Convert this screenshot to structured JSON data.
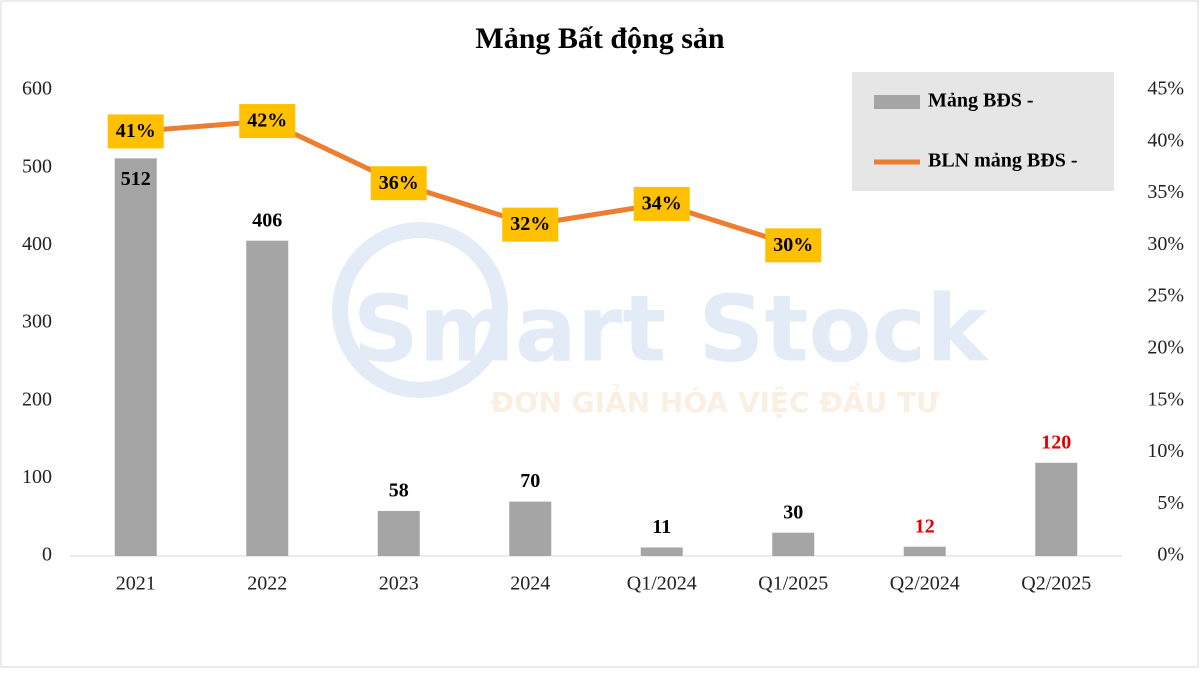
{
  "chart_data": {
    "type": "bar_line",
    "title": "Mảng Bất động sản",
    "categories": [
      "2021",
      "2022",
      "2023",
      "2024",
      "Q1/2024",
      "Q1/2025",
      "Q2/2024",
      "Q2/2025"
    ],
    "series": [
      {
        "name": "Mảng BĐS -",
        "type": "bar",
        "color": "#a5a5a5",
        "values": [
          512,
          406,
          58,
          70,
          11,
          30,
          12,
          120
        ],
        "label_colors": [
          "#000000",
          "#000000",
          "#000000",
          "#000000",
          "#000000",
          "#000000",
          "#e00000",
          "#e00000"
        ]
      },
      {
        "name": "BLN mảng BĐS -",
        "type": "line",
        "axis": "y2",
        "color": "#ed7d31",
        "values": [
          41,
          42,
          36,
          32,
          34,
          30,
          null,
          null
        ],
        "value_labels": [
          "41%",
          "42%",
          "36%",
          "32%",
          "34%",
          "30%",
          null,
          null
        ],
        "label_background": "#ffc000"
      }
    ],
    "ylim": [
      0,
      600
    ],
    "yticks": [
      0,
      100,
      200,
      300,
      400,
      500,
      600
    ],
    "y2lim": [
      0,
      45
    ],
    "y2ticks": [
      {
        "value": 0,
        "label": "0%"
      },
      {
        "value": 5,
        "label": "5%"
      },
      {
        "value": 10,
        "label": "10%"
      },
      {
        "value": 15,
        "label": "15%"
      },
      {
        "value": 20,
        "label": "20%"
      },
      {
        "value": 25,
        "label": "25%"
      },
      {
        "value": 30,
        "label": "30%"
      },
      {
        "value": 35,
        "label": "35%"
      },
      {
        "value": 40,
        "label": "40%"
      },
      {
        "value": 45,
        "label": "45%"
      }
    ],
    "grid": false,
    "legend": "top-right",
    "watermark": {
      "title": "Smart Stock",
      "subtitle": "ĐƠN GIẢN HÓA VIỆC ĐẦU TƯ"
    }
  }
}
